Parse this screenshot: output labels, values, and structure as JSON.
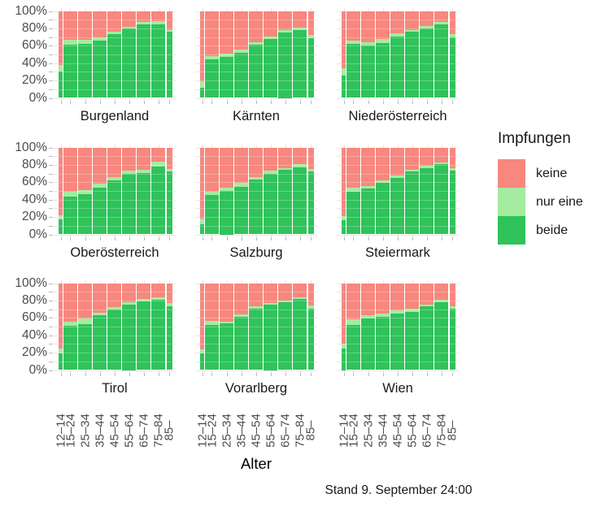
{
  "legend": {
    "title": "Impfungen",
    "items": [
      {
        "label": "keine",
        "color": "#F8877E"
      },
      {
        "label": "nur eine",
        "color": "#A5EBA0"
      },
      {
        "label": "beide",
        "color": "#2FC35A"
      }
    ]
  },
  "x_axis": {
    "title": "Alter",
    "tick_labels": [
      "12–14",
      "15–24",
      "25–34",
      "35–44",
      "45–54",
      "55–64",
      "65–74",
      "75–84",
      "85–"
    ]
  },
  "y_axis": {
    "tick_labels": [
      "100%",
      "80%",
      "60%",
      "40%",
      "20%",
      "0%"
    ]
  },
  "caption": "Stand 9. September 24:00",
  "chart_data": {
    "type": "bar",
    "stacked": true,
    "unit": "percent",
    "ylim": [
      0,
      100
    ],
    "grid": true,
    "legend_position": "right",
    "categories": [
      "12–14",
      "15–24",
      "25–34",
      "35–44",
      "45–54",
      "55–64",
      "65–74",
      "75–84",
      "85–"
    ],
    "series_names": [
      "beide",
      "nur_eine",
      "keine"
    ],
    "facets": [
      {
        "name": "Burgenland",
        "beide": [
          30,
          61,
          62,
          66,
          73,
          80,
          85,
          85,
          76
        ],
        "nur_eine": [
          8,
          6,
          5,
          4,
          3,
          2,
          2,
          3,
          2
        ],
        "keine": [
          62,
          33,
          33,
          30,
          24,
          18,
          13,
          12,
          22
        ]
      },
      {
        "name": "Kärnten",
        "beide": [
          12,
          44,
          47,
          52,
          61,
          68,
          75,
          78,
          69
        ],
        "nur_eine": [
          7,
          4,
          4,
          4,
          3,
          3,
          3,
          3,
          3
        ],
        "keine": [
          81,
          52,
          49,
          44,
          36,
          29,
          22,
          19,
          28
        ]
      },
      {
        "name": "Niederösterreich",
        "beide": [
          26,
          62,
          60,
          63,
          71,
          76,
          80,
          85,
          70
        ],
        "nur_eine": [
          8,
          4,
          4,
          5,
          3,
          2,
          3,
          2,
          3
        ],
        "keine": [
          66,
          34,
          36,
          32,
          26,
          22,
          17,
          13,
          27
        ]
      },
      {
        "name": "Oberösterreich",
        "beide": [
          17,
          43,
          46,
          54,
          62,
          70,
          71,
          78,
          72
        ],
        "nur_eine": [
          5,
          6,
          5,
          4,
          4,
          3,
          3,
          6,
          3
        ],
        "keine": [
          78,
          51,
          49,
          42,
          34,
          27,
          26,
          16,
          25
        ]
      },
      {
        "name": "Salzburg",
        "beide": [
          12,
          45,
          50,
          55,
          63,
          70,
          74,
          77,
          72
        ],
        "nur_eine": [
          6,
          4,
          4,
          4,
          3,
          3,
          2,
          4,
          3
        ],
        "keine": [
          82,
          51,
          46,
          41,
          34,
          27,
          24,
          19,
          25
        ]
      },
      {
        "name": "Steiermark",
        "beide": [
          16,
          49,
          53,
          59,
          65,
          72,
          76,
          81,
          73
        ],
        "nur_eine": [
          5,
          5,
          3,
          3,
          3,
          2,
          3,
          2,
          3
        ],
        "keine": [
          79,
          46,
          44,
          38,
          32,
          26,
          21,
          17,
          24
        ]
      },
      {
        "name": "Tirol",
        "beide": [
          19,
          51,
          53,
          63,
          70,
          75,
          79,
          81,
          73
        ],
        "nur_eine": [
          6,
          5,
          6,
          3,
          2,
          3,
          3,
          3,
          4
        ],
        "keine": [
          75,
          44,
          41,
          34,
          28,
          22,
          18,
          16,
          23
        ]
      },
      {
        "name": "Vorarlberg",
        "beide": [
          19,
          52,
          54,
          61,
          71,
          75,
          78,
          82,
          71
        ],
        "nur_eine": [
          5,
          5,
          2,
          3,
          2,
          2,
          2,
          2,
          3
        ],
        "keine": [
          76,
          43,
          44,
          36,
          27,
          23,
          20,
          16,
          26
        ]
      },
      {
        "name": "Wien",
        "beide": [
          25,
          52,
          59,
          61,
          65,
          67,
          73,
          78,
          71
        ],
        "nur_eine": [
          5,
          6,
          4,
          4,
          4,
          4,
          2,
          3,
          2
        ],
        "keine": [
          70,
          42,
          37,
          35,
          31,
          29,
          25,
          19,
          27
        ]
      }
    ]
  }
}
